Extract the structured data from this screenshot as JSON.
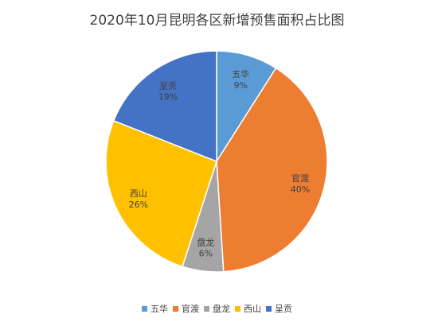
{
  "chart_data": {
    "type": "pie",
    "title": "2020年10月昆明各区新增预售面积占比图",
    "slices": [
      {
        "name": "五华",
        "value": 9,
        "label": "9%",
        "color": "#5b9bd5"
      },
      {
        "name": "官渡",
        "value": 40,
        "label": "40%",
        "color": "#ed7d31"
      },
      {
        "name": "盘龙",
        "value": 6,
        "label": "6%",
        "color": "#a5a5a5"
      },
      {
        "name": "西山",
        "value": 26,
        "label": "26%",
        "color": "#ffc000"
      },
      {
        "name": "呈贡",
        "value": 19,
        "label": "19%",
        "color": "#4472c4"
      }
    ],
    "legend_position": "bottom"
  }
}
